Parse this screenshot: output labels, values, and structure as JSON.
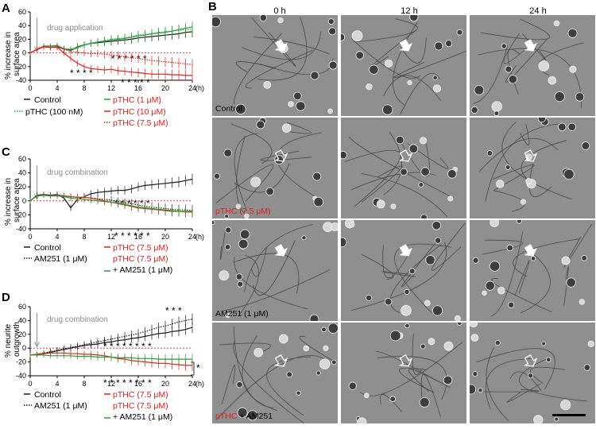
{
  "colors": {
    "black": "#1a1a1a",
    "green": "#2e9b3d",
    "red": "#e3201c",
    "lightred": "#e88d8b",
    "gray": "#8a8a8a"
  },
  "panels": {
    "A": {
      "letter": "A",
      "ylabel": [
        "% increase in",
        "surface area"
      ],
      "annotation": "drug application",
      "xunit": "(h)",
      "stars_top_label": "* * * * * *",
      "stars_mid_label": "* * * *",
      "stars_low_label": "* * * * *"
    },
    "C": {
      "letter": "C",
      "ylabel": [
        "% increase in",
        "surface area"
      ],
      "annotation": "drug combination",
      "xunit": "(h)"
    },
    "D": {
      "letter": "D",
      "ylabel": [
        "% neurite",
        "outgrowth"
      ],
      "annotation": "drug combination",
      "xunit": "(h)",
      "side_star": "*"
    },
    "B": {
      "letter": "B"
    }
  },
  "legends": {
    "A": [
      {
        "text": "Control",
        "color": "#1a1a1a",
        "style": "solid"
      },
      {
        "text": "pTHC (1 μM)",
        "color": "#2e9b3d",
        "style": "solid"
      },
      {
        "text": "pTHC (100 nM)",
        "color": "#2e9b3d",
        "style": "dotted"
      },
      {
        "text": "pTHC (10 μM)",
        "color": "#e3201c",
        "style": "solid"
      },
      {
        "text": "pTHC (7.5 μM)",
        "color": "#e3201c",
        "style": "dotted"
      }
    ],
    "C": [
      {
        "text": "Control",
        "color": "#1a1a1a",
        "style": "solid"
      },
      {
        "text": "pTHC (7.5 μM)",
        "color": "#e3201c",
        "style": "solid"
      },
      {
        "text": "AM251 (1 μM)",
        "color": "#1a1a1a",
        "style": "dotted"
      },
      {
        "text": "pTHC (7.5 μM)",
        "color": "#e3201c",
        "style": "solid"
      },
      {
        "text": "+ AM251 (1 μM)",
        "color": "#2e9b3d",
        "style": "solid"
      }
    ],
    "D": [
      {
        "text": "Control",
        "color": "#1a1a1a",
        "style": "solid"
      },
      {
        "text": "pTHC (7.5 μM)",
        "color": "#e3201c",
        "style": "solid"
      },
      {
        "text": "AM251 (1 μM)",
        "color": "#1a1a1a",
        "style": "dotted"
      },
      {
        "text": "pTHC (7.5 μM)",
        "color": "#e3201c",
        "style": "solid"
      },
      {
        "text": "+ AM251 (1 μM)",
        "color": "#2e9b3d",
        "style": "solid"
      }
    ]
  },
  "chart_data": [
    {
      "type": "line",
      "title": "A",
      "xlabel": "(h)",
      "ylabel": "% increase in surface area",
      "xlim": [
        0,
        24
      ],
      "ylim": [
        -40,
        60
      ],
      "xticks": [
        0,
        4,
        8,
        12,
        16,
        20,
        24
      ],
      "yticks": [
        -40,
        -20,
        0,
        20,
        40,
        60
      ],
      "x": [
        0,
        1,
        2,
        3,
        4,
        5,
        6,
        7,
        8,
        9,
        10,
        11,
        12,
        13,
        14,
        15,
        16,
        17,
        18,
        19,
        20,
        21,
        22,
        23,
        24
      ],
      "series": [
        {
          "name": "Control",
          "color": "#1a1a1a",
          "dash": "solid",
          "values": [
            0,
            5,
            9,
            8,
            9,
            6,
            4,
            9,
            12,
            14,
            15,
            16,
            17,
            18,
            19,
            20,
            22,
            23,
            24,
            25,
            26,
            27,
            28,
            30,
            31
          ]
        },
        {
          "name": "pTHC (1 μM)",
          "color": "#2e9b3d",
          "dash": "solid",
          "values": [
            0,
            5,
            10,
            10,
            11,
            6,
            5,
            8,
            12,
            14,
            16,
            17,
            19,
            20,
            21,
            23,
            25,
            26,
            28,
            29,
            30,
            32,
            34,
            36,
            38
          ]
        },
        {
          "name": "pTHC (100 nM)",
          "color": "#2e9b3d",
          "dash": "dotted",
          "values": [
            0,
            5,
            9,
            9,
            10,
            5,
            3,
            7,
            11,
            14,
            16,
            18,
            20,
            21,
            22,
            24,
            26,
            27,
            28,
            30,
            31,
            32,
            33,
            34,
            35
          ]
        },
        {
          "name": "pTHC (10 μM)",
          "color": "#e3201c",
          "dash": "solid",
          "values": [
            0,
            5,
            9,
            8,
            8,
            0,
            -8,
            -15,
            -20,
            -23,
            -24,
            -25,
            -24,
            -26,
            -27,
            -28,
            -29,
            -30,
            -31,
            -31,
            -31,
            -32,
            -32,
            -33,
            -33
          ]
        },
        {
          "name": "pTHC (7.5 μM)",
          "color": "#e3201c",
          "dash": "dotted",
          "values": [
            0,
            5,
            9,
            8,
            9,
            5,
            2,
            1,
            0,
            -1,
            -1,
            -2,
            -3,
            -4,
            -6,
            -7,
            -8,
            -10,
            -11,
            -12,
            -13,
            -14,
            -15,
            -16,
            -17
          ]
        }
      ]
    },
    {
      "type": "line",
      "title": "C",
      "xlabel": "(h)",
      "ylabel": "% increase in surface area",
      "xlim": [
        0,
        24
      ],
      "ylim": [
        -40,
        60
      ],
      "xticks": [
        0,
        4,
        8,
        12,
        16,
        20,
        24
      ],
      "yticks": [
        -40,
        -20,
        0,
        20,
        40,
        60
      ],
      "x": [
        0,
        1,
        2,
        3,
        4,
        5,
        6,
        7,
        8,
        9,
        10,
        11,
        12,
        13,
        14,
        15,
        16,
        17,
        18,
        19,
        20,
        21,
        22,
        23,
        24
      ],
      "series": [
        {
          "name": "Control",
          "color": "#1a1a1a",
          "dash": "solid",
          "values": [
            0,
            8,
            9,
            8,
            9,
            4,
            -10,
            2,
            6,
            10,
            12,
            13,
            14,
            15,
            15,
            17,
            20,
            22,
            23,
            24,
            25,
            26,
            27,
            29,
            31
          ]
        },
        {
          "name": "AM251 (1 μM)",
          "color": "#1a1a1a",
          "dash": "dotted",
          "values": [
            0,
            8,
            9,
            8,
            9,
            7,
            6,
            5,
            5,
            4,
            3,
            2,
            1,
            -1,
            -3,
            -4,
            -6,
            -8,
            -9,
            -10,
            -11,
            -12,
            -13,
            -13,
            -14
          ]
        },
        {
          "name": "pTHC (7.5 μM)",
          "color": "#e3201c",
          "dash": "solid",
          "values": [
            0,
            7,
            8,
            7,
            8,
            7,
            6,
            5,
            5,
            4,
            2,
            0,
            -2,
            -4,
            -6,
            -8,
            -10,
            -11,
            -12,
            -13,
            -14,
            -15,
            -15,
            -16,
            -16
          ]
        },
        {
          "name": "pTHC (7.5 μM) + AM251 (1 μM)",
          "color": "#2e9b3d",
          "dash": "solid",
          "values": [
            0,
            7,
            8,
            7,
            7,
            6,
            4,
            3,
            2,
            1,
            0,
            -1,
            -2,
            -3,
            -5,
            -7,
            -9,
            -10,
            -11,
            -12,
            -13,
            -14,
            -15,
            -15,
            -15
          ]
        }
      ]
    },
    {
      "type": "line",
      "title": "D",
      "xlabel": "(h)",
      "ylabel": "% neurite outgrowth",
      "xlim": [
        0,
        24
      ],
      "ylim": [
        -40,
        60
      ],
      "xticks": [
        0,
        4,
        8,
        12,
        16,
        20,
        24
      ],
      "yticks": [
        -40,
        -20,
        0,
        20,
        40,
        60
      ],
      "x": [
        0,
        1,
        2,
        3,
        4,
        5,
        6,
        7,
        8,
        9,
        10,
        11,
        12,
        13,
        14,
        15,
        16,
        17,
        18,
        19,
        20,
        21,
        22,
        23,
        24
      ],
      "series": [
        {
          "name": "Control",
          "color": "#1a1a1a",
          "dash": "solid",
          "values": [
            -10,
            -9,
            -8,
            -6,
            -4,
            -2,
            0,
            2,
            4,
            5,
            6,
            8,
            9,
            11,
            12,
            14,
            15,
            17,
            19,
            21,
            22,
            24,
            25,
            27,
            30
          ]
        },
        {
          "name": "AM251 (1 μM)",
          "color": "#1a1a1a",
          "dash": "dotted",
          "values": [
            -10,
            -9,
            -7,
            -5,
            -3,
            -1,
            1,
            3,
            5,
            7,
            9,
            11,
            13,
            15,
            17,
            19,
            21,
            24,
            27,
            30,
            32,
            35,
            38,
            40,
            42
          ]
        },
        {
          "name": "pTHC (7.5 μM)",
          "color": "#e3201c",
          "dash": "solid",
          "values": [
            -10,
            -9,
            -8,
            -7,
            -7,
            -7,
            -8,
            -8,
            -9,
            -9,
            -10,
            -11,
            -13,
            -15,
            -16,
            -18,
            -19,
            -20,
            -21,
            -22,
            -22,
            -23,
            -24,
            -25,
            -25
          ]
        },
        {
          "name": "pTHC (7.5 μM) + AM251 (1 μM)",
          "color": "#2e9b3d",
          "dash": "solid",
          "values": [
            -10,
            -10,
            -10,
            -11,
            -11,
            -11,
            -11,
            -12,
            -12,
            -12,
            -13,
            -13,
            -13,
            -14,
            -14,
            -14,
            -15,
            -15,
            -15,
            -16,
            -16,
            -16,
            -16,
            -16,
            -16
          ]
        }
      ]
    }
  ],
  "micrographs": {
    "columns": [
      "0 h",
      "12 h",
      "24 h"
    ],
    "rows": [
      {
        "label": "Control",
        "label_color": "#000000",
        "arrow": "filled"
      },
      {
        "label": "pTHC (7.5 μM)",
        "label_color": "#e3201c",
        "arrow": "open"
      },
      {
        "label": "AM251 (1 μM)",
        "label_color": "#000000",
        "arrow": "filled"
      },
      {
        "label_red": "pTHC",
        "label_black": " + AM251",
        "arrow": "open"
      }
    ]
  }
}
